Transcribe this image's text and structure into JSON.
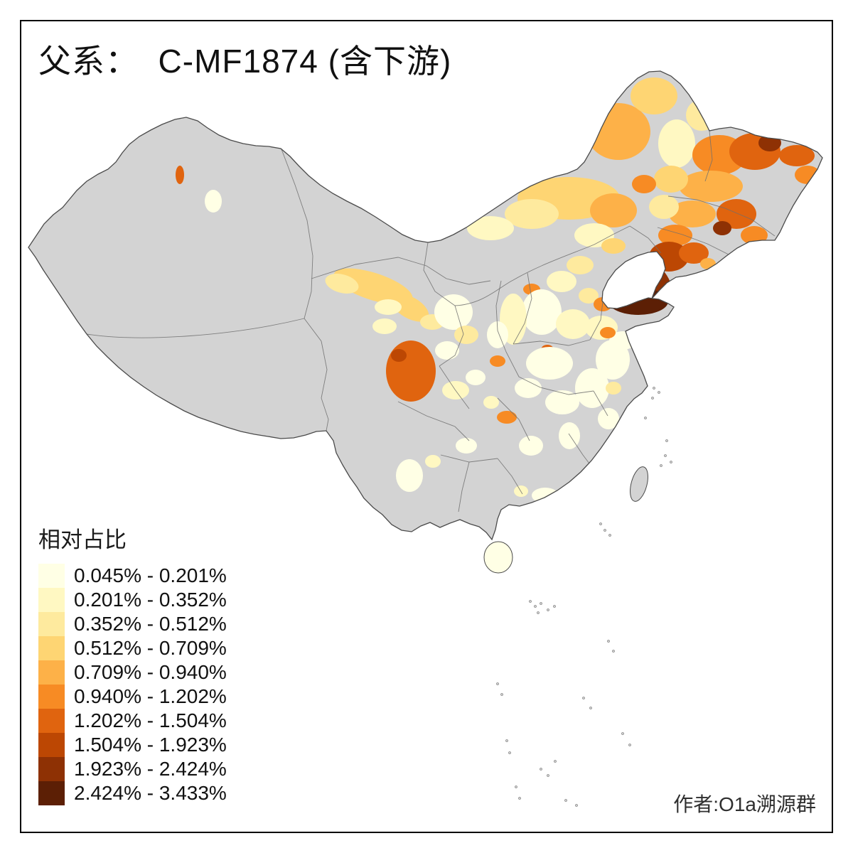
{
  "title": "父系：  C-MF1874 (含下游)",
  "legend": {
    "title": "相对占比",
    "classes": [
      {
        "label": "0.045% - 0.201%",
        "color": "#FFFFE5"
      },
      {
        "label": "0.201% - 0.352%",
        "color": "#FFF8C2"
      },
      {
        "label": "0.352% - 0.512%",
        "color": "#FEEA9E"
      },
      {
        "label": "0.512% - 0.709%",
        "color": "#FED573"
      },
      {
        "label": "0.709% - 0.940%",
        "color": "#FDB148"
      },
      {
        "label": "0.940% - 1.202%",
        "color": "#F78B24"
      },
      {
        "label": "1.202% - 1.504%",
        "color": "#E0640F"
      },
      {
        "label": "1.504% - 1.923%",
        "color": "#BC4703"
      },
      {
        "label": "1.923% - 2.424%",
        "color": "#8E3104"
      },
      {
        "label": "2.424% - 3.433%",
        "color": "#5C1F05"
      }
    ]
  },
  "attribution": "作者:O1a溯源群",
  "map": {
    "no_data_color": "#D3D3D3",
    "land_outline_color": "#4A4A4A",
    "province_border_color": "#6E6E6E",
    "background_color": "#FFFFFF"
  }
}
